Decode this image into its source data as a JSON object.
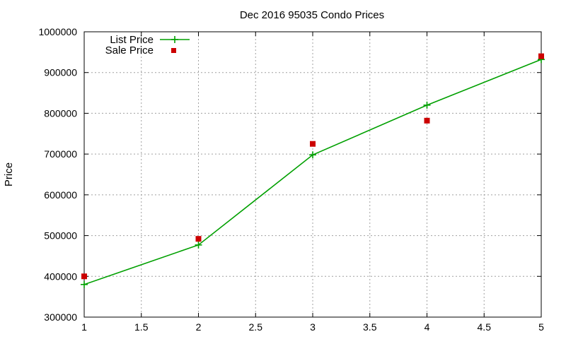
{
  "chart_data": {
    "type": "line",
    "title": "Dec 2016 95035 Condo Prices",
    "xlabel": "",
    "ylabel": "Price",
    "xlim": [
      1,
      5
    ],
    "ylim": [
      300000,
      1000000
    ],
    "x_ticks": [
      "1",
      "1.5",
      "2",
      "2.5",
      "3",
      "3.5",
      "4",
      "4.5",
      "5"
    ],
    "y_ticks": [
      "300000",
      "400000",
      "500000",
      "600000",
      "700000",
      "800000",
      "900000",
      "1000000"
    ],
    "grid": true,
    "legend_position": "top-left",
    "series": [
      {
        "name": "List Price",
        "style": "line-with-plus-markers",
        "color": "#00a000",
        "x": [
          1,
          2,
          3,
          4,
          5
        ],
        "y": [
          380000,
          477000,
          698000,
          820000,
          932000
        ]
      },
      {
        "name": "Sale Price",
        "style": "square-markers",
        "color": "#cc0000",
        "x": [
          1,
          2,
          3,
          4,
          5
        ],
        "y": [
          400000,
          492000,
          725000,
          782000,
          940000
        ]
      }
    ]
  }
}
